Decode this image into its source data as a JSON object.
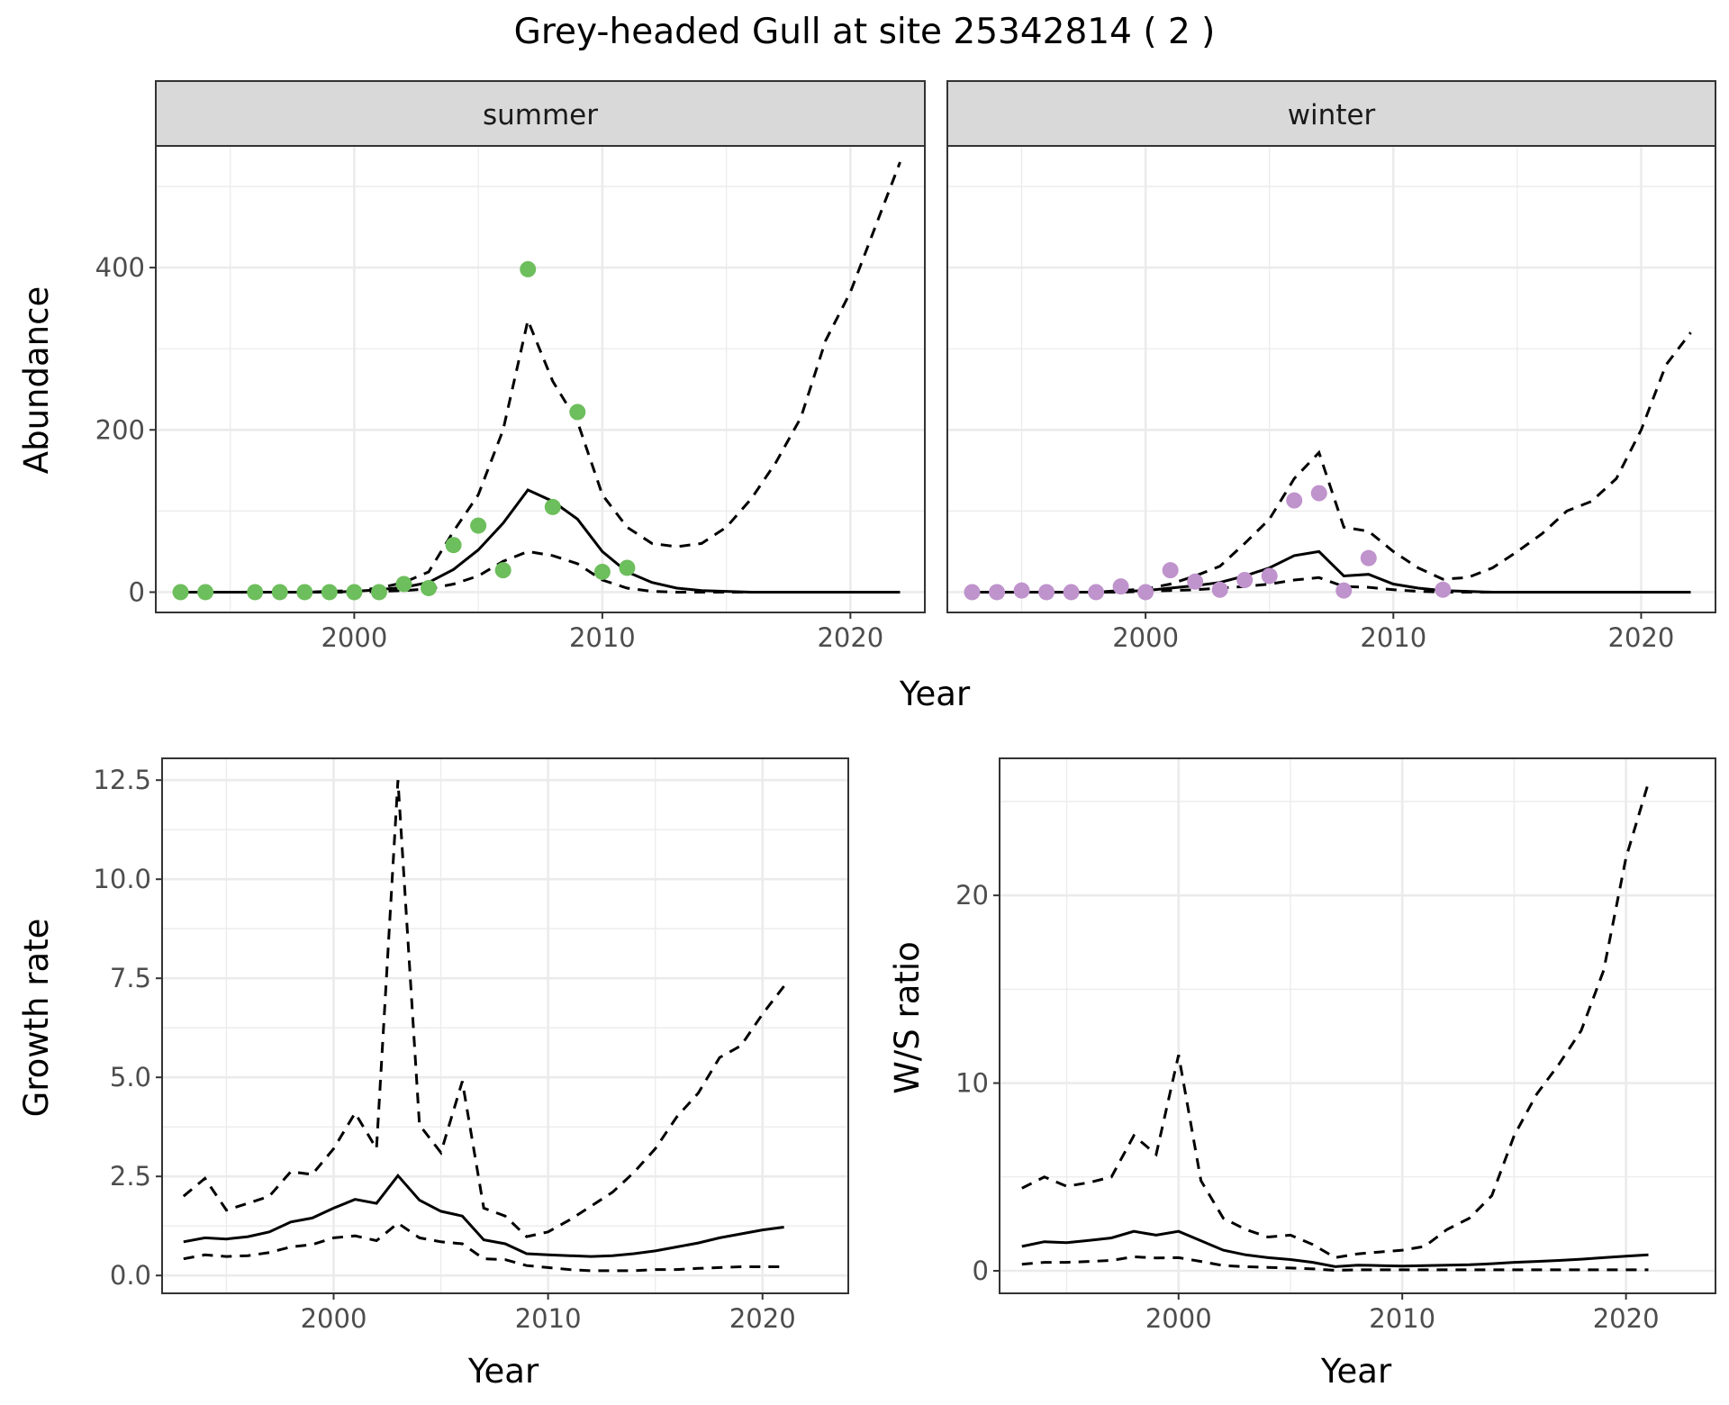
{
  "title": "Grey-headed Gull at site 25342814 ( 2 )",
  "colors": {
    "summer_points": "#6DBE5C",
    "winter_points": "#BF93CC",
    "line": "#000000",
    "grid": "#EBEBEB",
    "strip": "#D9D9D9"
  },
  "chart_data": [
    {
      "type": "line",
      "panel": "abundance",
      "facets": [
        "summer",
        "winter"
      ],
      "xlabel": "Year",
      "ylabel": "Abundance",
      "xlim": [
        1992,
        2023
      ],
      "ylim": [
        -25,
        550
      ],
      "xticks": [
        2000,
        2010,
        2020
      ],
      "yticks": [
        0,
        200,
        400
      ],
      "summer": {
        "points": {
          "x": [
            1993,
            1994,
            1996,
            1997,
            1998,
            1999,
            2000,
            2001,
            2002,
            2003,
            2004,
            2005,
            2006,
            2007,
            2008,
            2009,
            2010,
            2011
          ],
          "y": [
            0,
            0,
            0,
            0,
            0,
            0,
            0,
            0,
            10,
            5,
            58,
            82,
            27,
            398,
            105,
            222,
            25,
            30
          ]
        },
        "fit": {
          "x": [
            1993,
            1994,
            1995,
            1996,
            1997,
            1998,
            1999,
            2000,
            2001,
            2002,
            2003,
            2004,
            2005,
            2006,
            2007,
            2008,
            2009,
            2010,
            2011,
            2012,
            2013,
            2014,
            2015,
            2016,
            2017,
            2018,
            2019,
            2020,
            2021,
            2022
          ],
          "mean": [
            0,
            0,
            0,
            0,
            0,
            0,
            0,
            1,
            3,
            6,
            12,
            28,
            52,
            85,
            126,
            112,
            90,
            50,
            25,
            12,
            5,
            2,
            1,
            0,
            0,
            0,
            0,
            0,
            0,
            0
          ],
          "upper": [
            0,
            0,
            0,
            0,
            0,
            0,
            1,
            2,
            5,
            12,
            25,
            75,
            120,
            200,
            335,
            260,
            210,
            120,
            80,
            60,
            56,
            60,
            80,
            115,
            160,
            215,
            310,
            370,
            450,
            530
          ],
          "lower": [
            0,
            0,
            0,
            0,
            0,
            0,
            0,
            0,
            1,
            2,
            4,
            10,
            20,
            38,
            50,
            45,
            35,
            15,
            5,
            1,
            0,
            0,
            0,
            0,
            0,
            0,
            0,
            0,
            0,
            0
          ]
        }
      },
      "winter": {
        "points": {
          "x": [
            1993,
            1994,
            1995,
            1996,
            1997,
            1998,
            1999,
            2000,
            2001,
            2002,
            2003,
            2004,
            2005,
            2006,
            2007,
            2008,
            2009,
            2012
          ],
          "y": [
            0,
            0,
            2,
            0,
            0,
            0,
            7,
            0,
            27,
            13,
            3,
            15,
            20,
            113,
            122,
            2,
            42,
            3
          ]
        },
        "fit": {
          "x": [
            1993,
            1994,
            1995,
            1996,
            1997,
            1998,
            1999,
            2000,
            2001,
            2002,
            2003,
            2004,
            2005,
            2006,
            2007,
            2008,
            2009,
            2010,
            2011,
            2012,
            2013,
            2014,
            2015,
            2016,
            2017,
            2018,
            2019,
            2020,
            2021,
            2022
          ],
          "mean": [
            0,
            0,
            0,
            0,
            0,
            0,
            1,
            2,
            5,
            8,
            12,
            20,
            30,
            45,
            50,
            20,
            22,
            10,
            5,
            2,
            1,
            0,
            0,
            0,
            0,
            0,
            0,
            0,
            0,
            0
          ],
          "upper": [
            0,
            0,
            0,
            0,
            0,
            0,
            2,
            4,
            10,
            20,
            32,
            60,
            90,
            140,
            172,
            80,
            75,
            50,
            30,
            16,
            18,
            30,
            50,
            72,
            100,
            112,
            140,
            200,
            280,
            320
          ],
          "lower": [
            0,
            0,
            0,
            0,
            0,
            0,
            0,
            1,
            2,
            3,
            5,
            7,
            10,
            15,
            18,
            7,
            6,
            3,
            1,
            0,
            0,
            0,
            0,
            0,
            0,
            0,
            0,
            0,
            0,
            0
          ]
        }
      }
    },
    {
      "type": "line",
      "panel": "growth",
      "xlabel": "Year",
      "ylabel": "Growth rate",
      "xlim": [
        1992,
        2024
      ],
      "ylim": [
        -0.45,
        13.05
      ],
      "xticks": [
        2000,
        2010,
        2020
      ],
      "yticks": [
        0.0,
        2.5,
        5.0,
        7.5,
        10.0,
        12.5
      ],
      "ytick_labels": [
        "0.0",
        "2.5",
        "5.0",
        "7.5",
        "10.0",
        "12.5"
      ],
      "x": [
        1993,
        1994,
        1995,
        1996,
        1997,
        1998,
        1999,
        2000,
        2001,
        2002,
        2003,
        2004,
        2005,
        2006,
        2007,
        2008,
        2009,
        2010,
        2011,
        2012,
        2013,
        2014,
        2015,
        2016,
        2017,
        2018,
        2019,
        2020,
        2021
      ],
      "mean": [
        0.85,
        0.95,
        0.92,
        0.98,
        1.1,
        1.35,
        1.45,
        1.7,
        1.92,
        1.82,
        2.52,
        1.9,
        1.62,
        1.5,
        0.9,
        0.8,
        0.55,
        0.52,
        0.5,
        0.48,
        0.5,
        0.55,
        0.62,
        0.72,
        0.82,
        0.95,
        1.05,
        1.15,
        1.22
      ],
      "upper": [
        2.0,
        2.45,
        1.65,
        1.82,
        2.0,
        2.62,
        2.55,
        3.2,
        4.1,
        3.2,
        12.5,
        3.8,
        3.1,
        4.9,
        1.7,
        1.5,
        0.98,
        1.1,
        1.4,
        1.75,
        2.1,
        2.6,
        3.2,
        4.0,
        4.6,
        5.5,
        5.8,
        6.6,
        7.3
      ],
      "lower": [
        0.42,
        0.52,
        0.48,
        0.5,
        0.58,
        0.72,
        0.78,
        0.95,
        1.0,
        0.88,
        1.32,
        0.95,
        0.85,
        0.8,
        0.42,
        0.4,
        0.25,
        0.2,
        0.15,
        0.12,
        0.12,
        0.12,
        0.15,
        0.15,
        0.18,
        0.2,
        0.22,
        0.22,
        0.22
      ]
    },
    {
      "type": "line",
      "panel": "ratio",
      "xlabel": "Year",
      "ylabel": "W/S ratio",
      "xlim": [
        1992,
        2024
      ],
      "ylim": [
        -1.2,
        27.3
      ],
      "xticks": [
        2000,
        2010,
        2020
      ],
      "yticks": [
        0,
        10,
        20
      ],
      "x": [
        1993,
        1994,
        1995,
        1996,
        1997,
        1998,
        1999,
        2000,
        2001,
        2002,
        2003,
        2004,
        2005,
        2006,
        2007,
        2008,
        2009,
        2010,
        2011,
        2012,
        2013,
        2014,
        2015,
        2016,
        2017,
        2018,
        2019,
        2020,
        2021
      ],
      "mean": [
        1.3,
        1.55,
        1.5,
        1.62,
        1.75,
        2.1,
        1.9,
        2.1,
        1.6,
        1.1,
        0.85,
        0.7,
        0.6,
        0.45,
        0.22,
        0.3,
        0.28,
        0.25,
        0.28,
        0.3,
        0.32,
        0.38,
        0.45,
        0.5,
        0.55,
        0.62,
        0.7,
        0.78,
        0.85
      ],
      "upper": [
        4.4,
        5.0,
        4.5,
        4.7,
        5.0,
        7.2,
        6.2,
        11.5,
        4.8,
        2.8,
        2.2,
        1.8,
        1.9,
        1.4,
        0.7,
        0.9,
        1.0,
        1.1,
        1.3,
        2.2,
        2.8,
        4.0,
        7.2,
        9.4,
        11.0,
        12.8,
        16.0,
        22.0,
        26.0
      ],
      "lower": [
        0.35,
        0.45,
        0.45,
        0.5,
        0.55,
        0.75,
        0.68,
        0.7,
        0.5,
        0.28,
        0.22,
        0.18,
        0.15,
        0.1,
        0.03,
        0.05,
        0.05,
        0.05,
        0.05,
        0.05,
        0.05,
        0.05,
        0.05,
        0.05,
        0.05,
        0.05,
        0.05,
        0.05,
        0.05
      ]
    }
  ]
}
